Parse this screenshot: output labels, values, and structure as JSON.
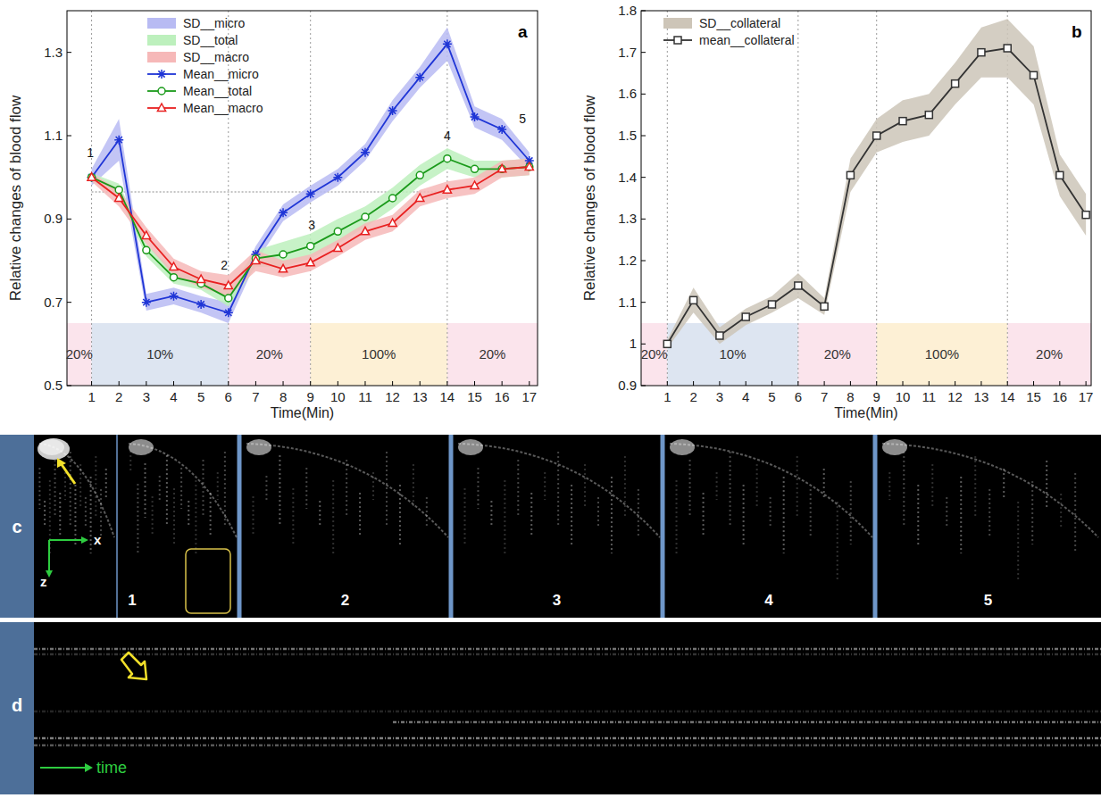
{
  "chart_data": [
    {
      "type": "line",
      "panel_label": "a",
      "x_label": "Time(Min)",
      "y_label": "Relative changes of blood flow",
      "x": [
        1,
        2,
        3,
        4,
        5,
        6,
        7,
        8,
        9,
        10,
        11,
        12,
        13,
        14,
        15,
        16,
        17
      ],
      "xlim": [
        0.1,
        17.3
      ],
      "xticks": [
        1,
        2,
        3,
        4,
        5,
        6,
        7,
        8,
        9,
        10,
        11,
        12,
        13,
        14,
        15,
        16,
        17
      ],
      "ylim": [
        0.5,
        1.4
      ],
      "yticks": [
        0.5,
        0.7,
        0.9,
        1.1,
        1.3
      ],
      "legend": "upper left",
      "vlines": [
        1,
        6,
        9,
        14
      ],
      "ref_line": {
        "y": 0.965,
        "x": [
          1,
          14
        ]
      },
      "phase_top": 0.65,
      "phases": [
        {
          "start": 0.1,
          "end": 1,
          "label": "20%",
          "color": "#fbe4ec"
        },
        {
          "start": 1,
          "end": 6,
          "label": "10%",
          "color": "#dde5f1"
        },
        {
          "start": 6,
          "end": 9,
          "label": "20%",
          "color": "#fbe4ec"
        },
        {
          "start": 9,
          "end": 14,
          "label": "100%",
          "color": "#fdf0d5"
        },
        {
          "start": 14,
          "end": 17.3,
          "label": "20%",
          "color": "#fbe4ec"
        }
      ],
      "annotations": [
        {
          "text": "1",
          "x": 0.95,
          "y": 1.06
        },
        {
          "text": "2",
          "x": 5.85,
          "y": 0.79
        },
        {
          "text": "3",
          "x": 9.05,
          "y": 0.885
        },
        {
          "text": "4",
          "x": 14,
          "y": 1.1
        },
        {
          "text": "5",
          "x": 16.75,
          "y": 1.14
        }
      ],
      "series": [
        {
          "name": "Mean__micro",
          "band_name": "SD__micro",
          "color": "#1f35d6",
          "band_color": "#b8bbf3",
          "marker": "star",
          "values": [
            1.0,
            1.09,
            0.7,
            0.715,
            0.695,
            0.675,
            0.815,
            0.915,
            0.96,
            1.0,
            1.06,
            1.16,
            1.24,
            1.32,
            1.145,
            1.115,
            1.04
          ],
          "sd": [
            0.02,
            0.05,
            0.02,
            0.02,
            0.02,
            0.025,
            0.02,
            0.02,
            0.02,
            0.02,
            0.02,
            0.025,
            0.025,
            0.04,
            0.025,
            0.025,
            0.02
          ]
        },
        {
          "name": "Mean__total",
          "band_name": "SD__total",
          "color": "#1a9a1a",
          "band_color": "#bdf0bd",
          "marker": "circle",
          "values": [
            1.0,
            0.97,
            0.825,
            0.76,
            0.745,
            0.71,
            0.805,
            0.815,
            0.835,
            0.87,
            0.905,
            0.95,
            1.005,
            1.045,
            1.02,
            1.02,
            1.025
          ],
          "sd": [
            0.01,
            0.015,
            0.015,
            0.015,
            0.015,
            0.02,
            0.02,
            0.03,
            0.03,
            0.03,
            0.025,
            0.025,
            0.025,
            0.025,
            0.02,
            0.02,
            0.02
          ]
        },
        {
          "name": "Mean__macro",
          "band_name": "SD__macro",
          "color": "#e82020",
          "band_color": "#f6b8b8",
          "marker": "triangle",
          "values": [
            1.0,
            0.95,
            0.86,
            0.785,
            0.755,
            0.74,
            0.8,
            0.78,
            0.795,
            0.83,
            0.87,
            0.89,
            0.95,
            0.97,
            0.98,
            1.02,
            1.025
          ],
          "sd": [
            0.01,
            0.02,
            0.02,
            0.02,
            0.02,
            0.025,
            0.025,
            0.02,
            0.02,
            0.02,
            0.02,
            0.02,
            0.02,
            0.02,
            0.02,
            0.02,
            0.02
          ]
        }
      ]
    },
    {
      "type": "line",
      "panel_label": "b",
      "x_label": "Time(Min)",
      "y_label": "Relative changes of blood flow",
      "x": [
        1,
        2,
        3,
        4,
        5,
        6,
        7,
        8,
        9,
        10,
        11,
        12,
        13,
        14,
        15,
        16,
        17
      ],
      "xlim": [
        0,
        17.2
      ],
      "xticks": [
        1,
        2,
        3,
        4,
        5,
        6,
        7,
        8,
        9,
        10,
        11,
        12,
        13,
        14,
        15,
        16,
        17
      ],
      "ylim": [
        0.9,
        1.8
      ],
      "yticks": [
        0.9,
        1,
        1.1,
        1.2,
        1.3,
        1.4,
        1.5,
        1.6,
        1.7,
        1.8
      ],
      "legend": "upper left",
      "vlines": [
        1,
        6,
        9,
        14
      ],
      "phase_top": 1.05,
      "phases": [
        {
          "start": 0,
          "end": 1,
          "label": "20%",
          "color": "#fbe4ec"
        },
        {
          "start": 1,
          "end": 6,
          "label": "10%",
          "color": "#dde5f1"
        },
        {
          "start": 6,
          "end": 9,
          "label": "20%",
          "color": "#fbe4ec"
        },
        {
          "start": 9,
          "end": 14,
          "label": "100%",
          "color": "#fdf0d5"
        },
        {
          "start": 14,
          "end": 17.2,
          "label": "20%",
          "color": "#fbe4ec"
        }
      ],
      "series": [
        {
          "name": "mean__collateral",
          "band_name": "SD__collateral",
          "color": "#333333",
          "band_color": "#cdc5b8",
          "marker": "square",
          "values": [
            1.0,
            1.105,
            1.02,
            1.065,
            1.095,
            1.14,
            1.09,
            1.405,
            1.5,
            1.535,
            1.55,
            1.625,
            1.7,
            1.71,
            1.645,
            1.405,
            1.31
          ],
          "sd": [
            0.01,
            0.03,
            0.02,
            0.02,
            0.02,
            0.03,
            0.02,
            0.04,
            0.04,
            0.05,
            0.05,
            0.05,
            0.06,
            0.07,
            0.07,
            0.05,
            0.05
          ]
        }
      ]
    }
  ],
  "images": {
    "c": {
      "letter": "c",
      "frames": [
        "1",
        "2",
        "3",
        "4",
        "5"
      ],
      "axis_labels": [
        "x",
        "z"
      ]
    },
    "d": {
      "letter": "d",
      "axis_label": "time"
    }
  }
}
